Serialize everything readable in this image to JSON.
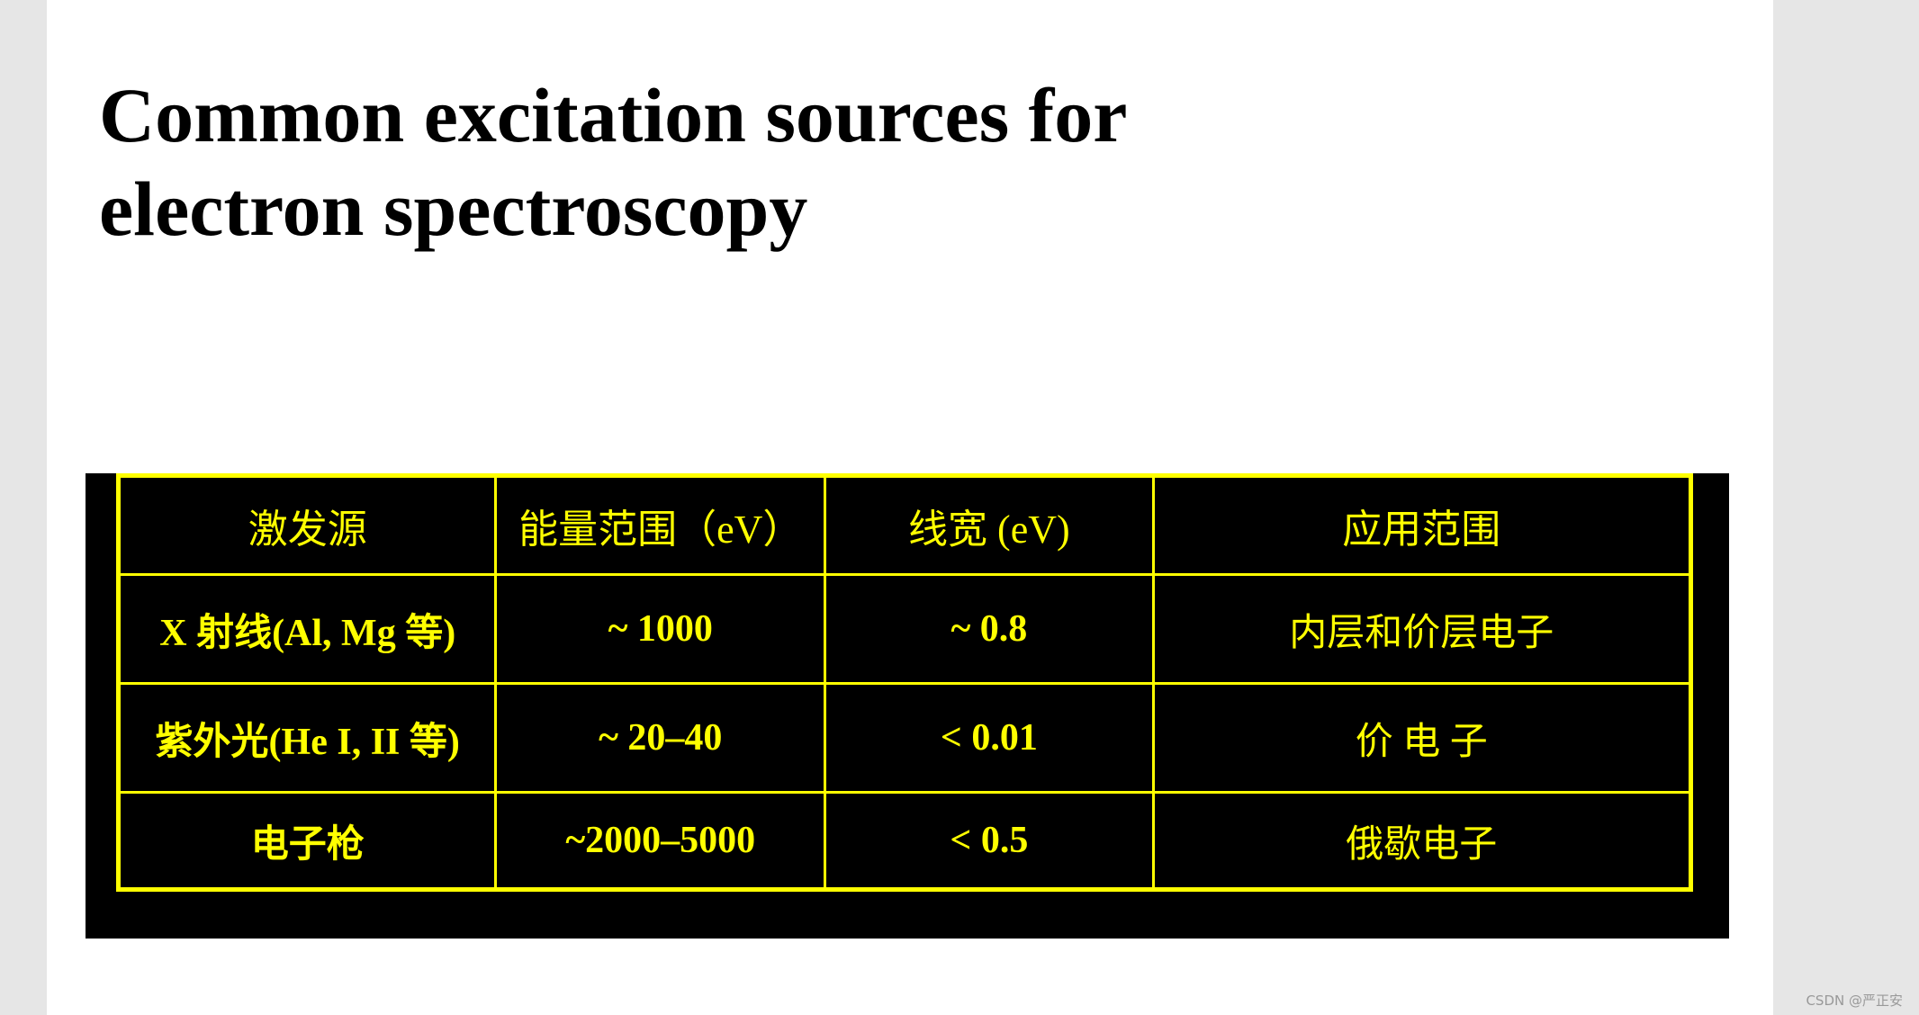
{
  "title": {
    "line1": "Common excitation sources for",
    "line2": "electron spectroscopy"
  },
  "table": {
    "headers": [
      "激发源",
      "能量范围（eV）",
      "线宽 (eV)",
      "应用范围"
    ],
    "rows": [
      [
        "X 射线(Al, Mg  等)",
        "~ 1000",
        "~ 0.8",
        "内层和价层电子"
      ],
      [
        "紫外光(He I, II  等)",
        "~ 20–40",
        "< 0.01",
        "价 电 子"
      ],
      [
        "电子枪",
        "~2000–5000",
        "< 0.5",
        "俄歇电子"
      ]
    ]
  },
  "watermark": "CSDN @严正安",
  "colors": {
    "table_background": "#000000",
    "table_text_and_border": "#ffff00",
    "page_background": "#ffffff"
  }
}
